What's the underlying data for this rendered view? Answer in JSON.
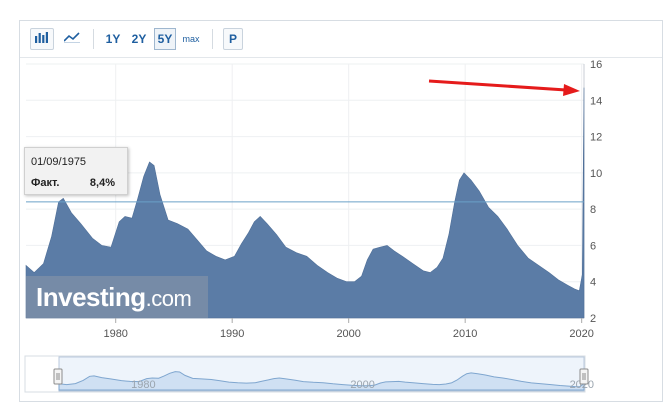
{
  "toolbar": {
    "buttons": [
      {
        "label": "",
        "icon": "bar-chart-icon"
      },
      {
        "label": "",
        "icon": "line-chart-icon"
      },
      {
        "label": "1Y"
      },
      {
        "label": "2Y"
      },
      {
        "label": "5Y"
      },
      {
        "label": "max"
      },
      {
        "label": "P"
      }
    ],
    "active_index": 4
  },
  "tooltip": {
    "date": "01/09/1975",
    "label": "Факт.",
    "value": "8,4%"
  },
  "logo": {
    "main": "Investing",
    "suffix": ".com"
  },
  "colors": {
    "area": "#5b7ca6",
    "navigator": "#cfe0f3",
    "accent_arrow": "#e51b1b",
    "reference_line": "#6aa0c8"
  },
  "chart_data": {
    "type": "area",
    "x_ticks": [
      "1980",
      "1990",
      "2000",
      "2010",
      "2020"
    ],
    "y_ticks": [
      "2",
      "4",
      "6",
      "8",
      "10",
      "12",
      "14",
      "16"
    ],
    "ylim": [
      2,
      16
    ],
    "xlim": [
      1972.3,
      2020.2
    ],
    "reference_line": 8.4,
    "x": [
      1972.3,
      1973,
      1973.8,
      1974.5,
      1975.1,
      1975.5,
      1976.2,
      1977,
      1978,
      1978.8,
      1979.6,
      1980.3,
      1980.8,
      1981.4,
      1981.9,
      1982.4,
      1982.9,
      1983.3,
      1983.8,
      1984.5,
      1985.3,
      1986.2,
      1987,
      1987.8,
      1988.6,
      1989.4,
      1990.2,
      1990.8,
      1991.4,
      1991.9,
      1992.4,
      1993,
      1993.8,
      1994.6,
      1995.5,
      1996.4,
      1997.3,
      1998.2,
      1999,
      1999.8,
      2000.5,
      2001.1,
      2001.6,
      2002.1,
      2002.7,
      2003.3,
      2003.9,
      2004.6,
      2005.5,
      2006.4,
      2007,
      2007.6,
      2008.1,
      2008.6,
      2009.1,
      2009.5,
      2009.9,
      2010.5,
      2011.2,
      2012,
      2012.8,
      2013.6,
      2014.5,
      2015.4,
      2016.3,
      2017.2,
      2018,
      2018.8,
      2019.4,
      2019.8,
      2020.05,
      2020.2
    ],
    "y": [
      4.9,
      4.5,
      5.0,
      6.5,
      8.4,
      8.6,
      7.8,
      7.2,
      6.4,
      6.0,
      5.9,
      7.3,
      7.6,
      7.5,
      8.6,
      9.8,
      10.6,
      10.4,
      8.8,
      7.4,
      7.2,
      6.9,
      6.3,
      5.7,
      5.4,
      5.2,
      5.4,
      6.1,
      6.7,
      7.3,
      7.6,
      7.2,
      6.6,
      5.9,
      5.6,
      5.4,
      4.9,
      4.5,
      4.2,
      4.0,
      4.0,
      4.3,
      5.2,
      5.8,
      5.9,
      6.0,
      5.7,
      5.4,
      5.0,
      4.6,
      4.5,
      4.8,
      5.3,
      6.6,
      8.4,
      9.6,
      10.0,
      9.6,
      9.0,
      8.1,
      7.6,
      6.9,
      6.0,
      5.3,
      4.9,
      4.5,
      4.1,
      3.8,
      3.6,
      3.5,
      4.4,
      14.7
    ]
  }
}
